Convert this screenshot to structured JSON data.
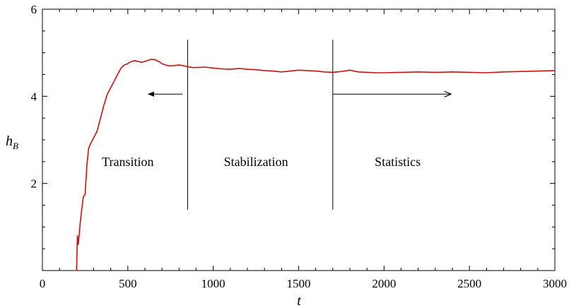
{
  "chart_data": {
    "type": "line",
    "title": "",
    "xlabel": "t",
    "ylabel": "h",
    "ylabel_sub": "B",
    "xlim": [
      0,
      3000
    ],
    "ylim": [
      0,
      6
    ],
    "xticks": [
      0,
      500,
      1000,
      1500,
      2000,
      2500,
      3000
    ],
    "xtick_labels": [
      "0",
      "500",
      "1000",
      "1500",
      "2000",
      "2500",
      "3000"
    ],
    "yticks": [
      2,
      4,
      6
    ],
    "ytick_labels": [
      "2",
      "4",
      "6"
    ],
    "grid": false,
    "legend": "none",
    "series": [
      {
        "color": "#cc1111",
        "x": [
          200,
          205,
          210,
          220,
          230,
          240,
          250,
          260,
          270,
          280,
          300,
          320,
          340,
          360,
          380,
          400,
          420,
          440,
          460,
          480,
          500,
          520,
          540,
          560,
          580,
          600,
          620,
          640,
          660,
          680,
          700,
          720,
          740,
          760,
          780,
          800,
          830,
          850,
          880,
          900,
          950,
          1000,
          1050,
          1100,
          1150,
          1200,
          1250,
          1300,
          1350,
          1400,
          1450,
          1500,
          1550,
          1600,
          1650,
          1700,
          1750,
          1800,
          1850,
          1900,
          1950,
          2000,
          2100,
          2200,
          2300,
          2400,
          2500,
          2600,
          2700,
          2800,
          2900,
          3000
        ],
        "y": [
          0.0,
          0.8,
          0.6,
          1.05,
          1.4,
          1.7,
          1.75,
          2.4,
          2.8,
          2.9,
          3.05,
          3.2,
          3.5,
          3.8,
          4.05,
          4.2,
          4.35,
          4.5,
          4.65,
          4.72,
          4.75,
          4.8,
          4.82,
          4.8,
          4.78,
          4.8,
          4.83,
          4.85,
          4.84,
          4.8,
          4.75,
          4.72,
          4.7,
          4.7,
          4.71,
          4.72,
          4.7,
          4.68,
          4.66,
          4.66,
          4.67,
          4.65,
          4.63,
          4.62,
          4.64,
          4.62,
          4.61,
          4.59,
          4.58,
          4.56,
          4.58,
          4.6,
          4.59,
          4.58,
          4.56,
          4.55,
          4.57,
          4.6,
          4.56,
          4.55,
          4.54,
          4.54,
          4.55,
          4.56,
          4.55,
          4.56,
          4.55,
          4.54,
          4.56,
          4.57,
          4.58,
          4.59
        ]
      }
    ],
    "annotations": [
      {
        "text": "Transition",
        "x": 500,
        "y": 2.5
      },
      {
        "text": "Stabilization",
        "x": 1250,
        "y": 2.5
      },
      {
        "text": "Statistics",
        "x": 2080,
        "y": 2.5
      }
    ],
    "markers": {
      "vlines": [
        {
          "x": 850,
          "y_from": 1.4,
          "y_to": 5.3
        },
        {
          "x": 1700,
          "y_from": 1.4,
          "y_to": 5.3
        }
      ],
      "arrows": [
        {
          "from_x": 820,
          "to_x": 620,
          "y": 4.05
        },
        {
          "from_x": 1700,
          "to_x": 2390,
          "y": 4.05
        }
      ]
    }
  }
}
